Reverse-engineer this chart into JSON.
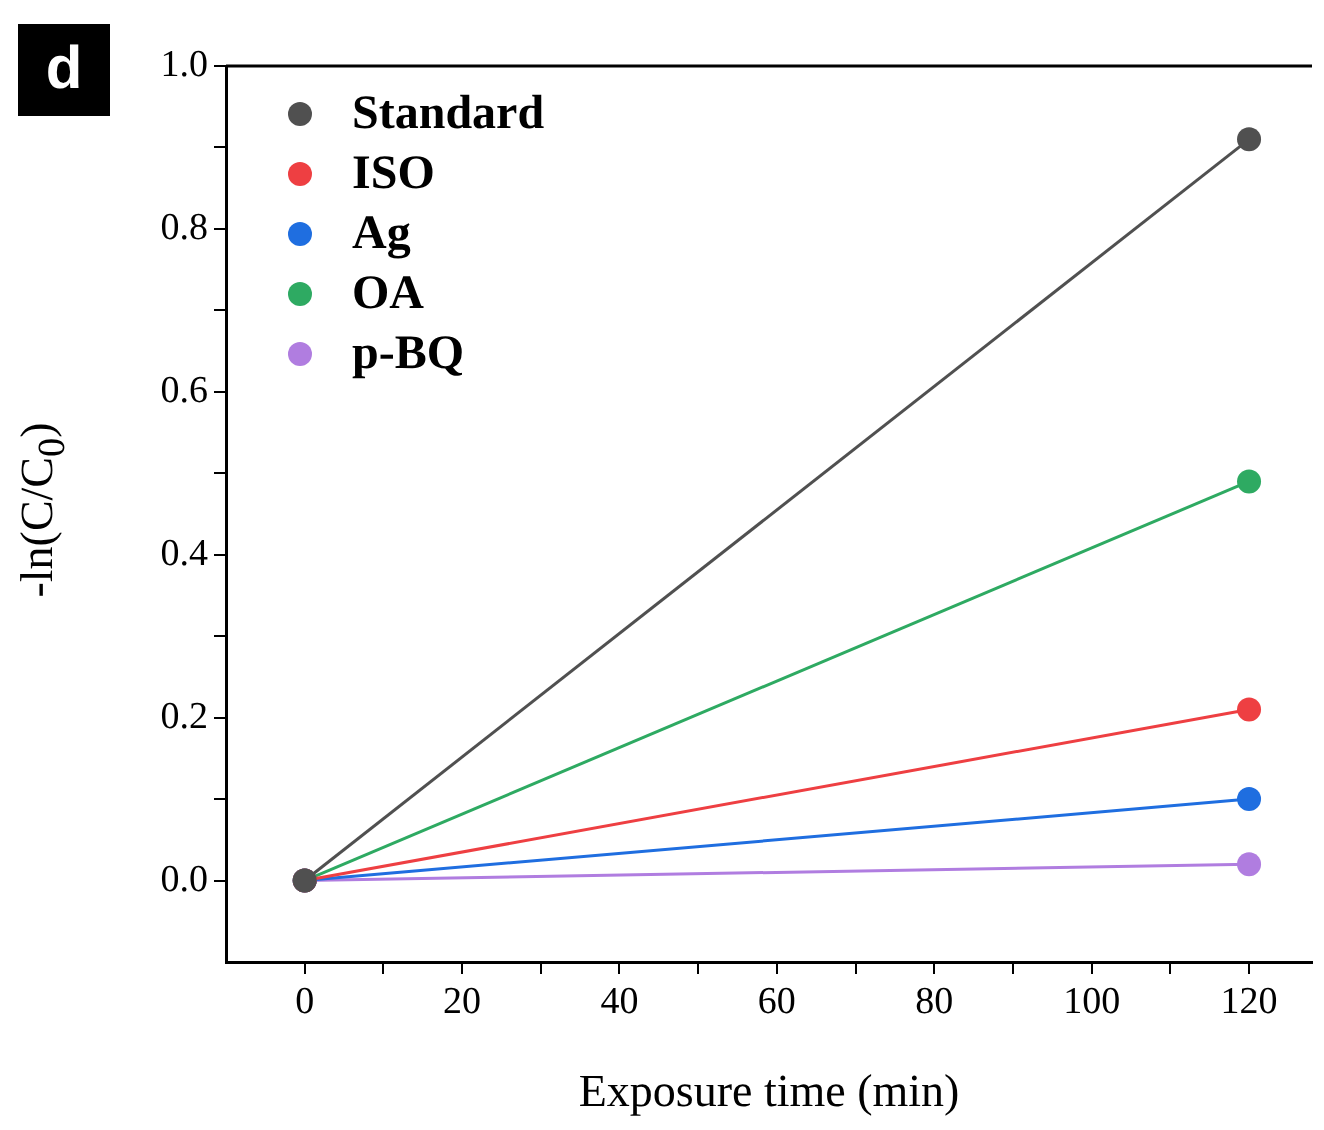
{
  "chart_data": {
    "type": "line",
    "xlabel": "Exposure time (min)",
    "ylabel": "-ln(C/C$_{0}$)",
    "annotations": [
      "d"
    ],
    "x": [
      0,
      120
    ],
    "series": [
      {
        "name": "Standard",
        "color": "#505050",
        "values": [
          0,
          0.91
        ]
      },
      {
        "name": "ISO",
        "color": "#ee3f42",
        "values": [
          0,
          0.21
        ]
      },
      {
        "name": "Ag",
        "color": "#1f6ee0",
        "values": [
          0,
          0.1
        ]
      },
      {
        "name": "OA",
        "color": "#2eaa62",
        "values": [
          0,
          0.49
        ]
      },
      {
        "name": "p-BQ",
        "color": "#b07de0",
        "values": [
          0,
          0.02
        ]
      }
    ],
    "xlim": [
      -10,
      128
    ],
    "xticks": [
      0,
      {
        "value": 10,
        "label": null
      },
      20,
      {
        "value": 30,
        "label": null
      },
      40,
      {
        "value": 50,
        "label": null
      },
      60,
      {
        "value": 70,
        "label": null
      },
      80,
      {
        "value": 90,
        "label": null
      },
      100,
      {
        "value": 110,
        "label": null
      },
      120
    ],
    "ylim": [
      -0.1,
      1.0
    ],
    "yticks": [
      {
        "value": 0,
        "label": "0.0"
      },
      {
        "value": 0.1,
        "label": null
      },
      {
        "value": 0.2,
        "label": "0.2"
      },
      {
        "value": 0.3,
        "label": null
      },
      {
        "value": 0.4,
        "label": "0.4"
      },
      {
        "value": 0.5,
        "label": null
      },
      {
        "value": 0.6,
        "label": "0.6"
      },
      {
        "value": 0.7,
        "label": null
      },
      {
        "value": 0.8,
        "label": "0.8"
      },
      {
        "value": 0.9,
        "label": null
      },
      {
        "value": 1,
        "label": "1.0"
      }
    ],
    "grid": false,
    "legend": "top left",
    "marker": "circle",
    "line_style": "solid"
  }
}
